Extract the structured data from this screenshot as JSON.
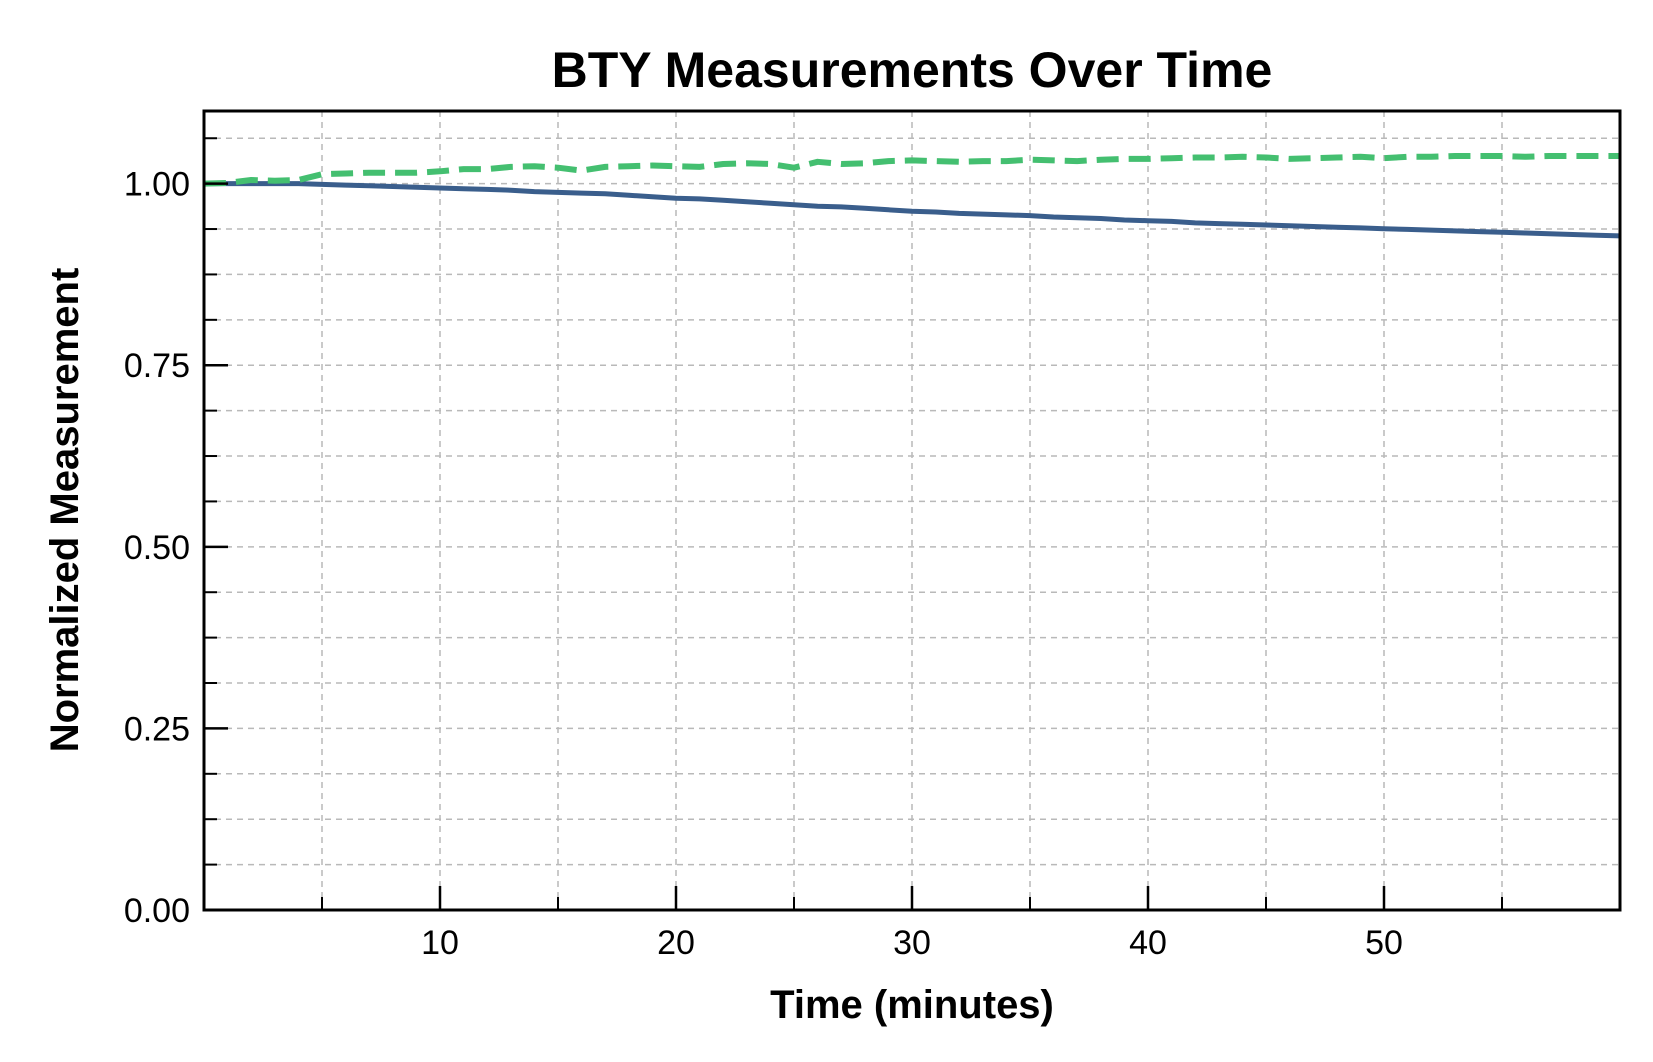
{
  "chart_data": {
    "type": "line",
    "title": "BTY Measurements Over Time",
    "xlabel": "Time (minutes)",
    "ylabel": "Normalized Measurement",
    "xlim": [
      0,
      60
    ],
    "ylim": [
      0,
      1.1
    ],
    "x_ticks": [
      10,
      20,
      30,
      40,
      50
    ],
    "x_tick_labels": [
      "10",
      "20",
      "30",
      "40",
      "50"
    ],
    "x_minor_ticks": [
      5,
      15,
      25,
      35,
      45,
      55
    ],
    "y_ticks": [
      0,
      0.25,
      0.5,
      0.75,
      1.0
    ],
    "y_tick_labels": [
      "0.00",
      "0.25",
      "0.50",
      "0.75",
      "1.00"
    ],
    "y_minor_ticks": [
      0.0625,
      0.125,
      0.1875,
      0.3125,
      0.375,
      0.4375,
      0.5625,
      0.625,
      0.6875,
      0.8125,
      0.875,
      0.9375,
      1.0625
    ],
    "grid": true,
    "legend": null,
    "series": [
      {
        "color": "#3a5e8c",
        "style": "solid",
        "x": [
          0,
          1,
          2,
          3,
          4,
          5,
          6,
          7,
          8,
          9,
          10,
          11,
          12,
          13,
          14,
          15,
          16,
          17,
          18,
          19,
          20,
          21,
          22,
          23,
          24,
          25,
          26,
          27,
          28,
          29,
          30,
          31,
          32,
          33,
          34,
          35,
          36,
          37,
          38,
          39,
          40,
          41,
          42,
          43,
          44,
          45,
          46,
          47,
          48,
          49,
          50,
          51,
          52,
          53,
          54,
          55,
          56,
          57,
          58,
          59,
          60
        ],
        "values": [
          1.0,
          1.0,
          1.0,
          1.0,
          1.0,
          0.999,
          0.998,
          0.997,
          0.996,
          0.995,
          0.994,
          0.993,
          0.992,
          0.991,
          0.989,
          0.988,
          0.987,
          0.986,
          0.984,
          0.982,
          0.98,
          0.979,
          0.977,
          0.975,
          0.973,
          0.971,
          0.969,
          0.968,
          0.966,
          0.964,
          0.962,
          0.961,
          0.959,
          0.958,
          0.957,
          0.956,
          0.954,
          0.953,
          0.952,
          0.95,
          0.949,
          0.948,
          0.946,
          0.945,
          0.944,
          0.943,
          0.942,
          0.941,
          0.94,
          0.939,
          0.938,
          0.937,
          0.936,
          0.935,
          0.934,
          0.933,
          0.932,
          0.931,
          0.93,
          0.929,
          0.928
        ]
      },
      {
        "color": "#44bf70",
        "style": "dashed",
        "x": [
          0,
          1,
          2,
          3,
          4,
          5,
          6,
          7,
          8,
          9,
          10,
          11,
          12,
          13,
          14,
          15,
          16,
          17,
          18,
          19,
          20,
          21,
          22,
          23,
          24,
          25,
          26,
          27,
          28,
          29,
          30,
          31,
          32,
          33,
          34,
          35,
          36,
          37,
          38,
          39,
          40,
          41,
          42,
          43,
          44,
          45,
          46,
          47,
          48,
          49,
          50,
          51,
          52,
          53,
          54,
          55,
          56,
          57,
          58,
          59,
          60
        ],
        "values": [
          1.0,
          1.001,
          1.005,
          1.004,
          1.005,
          1.013,
          1.014,
          1.015,
          1.015,
          1.015,
          1.017,
          1.02,
          1.02,
          1.023,
          1.024,
          1.022,
          1.018,
          1.023,
          1.024,
          1.025,
          1.024,
          1.023,
          1.027,
          1.028,
          1.027,
          1.022,
          1.03,
          1.027,
          1.028,
          1.031,
          1.032,
          1.031,
          1.03,
          1.031,
          1.031,
          1.033,
          1.032,
          1.031,
          1.033,
          1.034,
          1.034,
          1.035,
          1.036,
          1.036,
          1.037,
          1.036,
          1.034,
          1.035,
          1.036,
          1.037,
          1.035,
          1.037,
          1.037,
          1.038,
          1.038,
          1.038,
          1.037,
          1.038,
          1.038,
          1.038,
          1.038
        ]
      }
    ]
  }
}
